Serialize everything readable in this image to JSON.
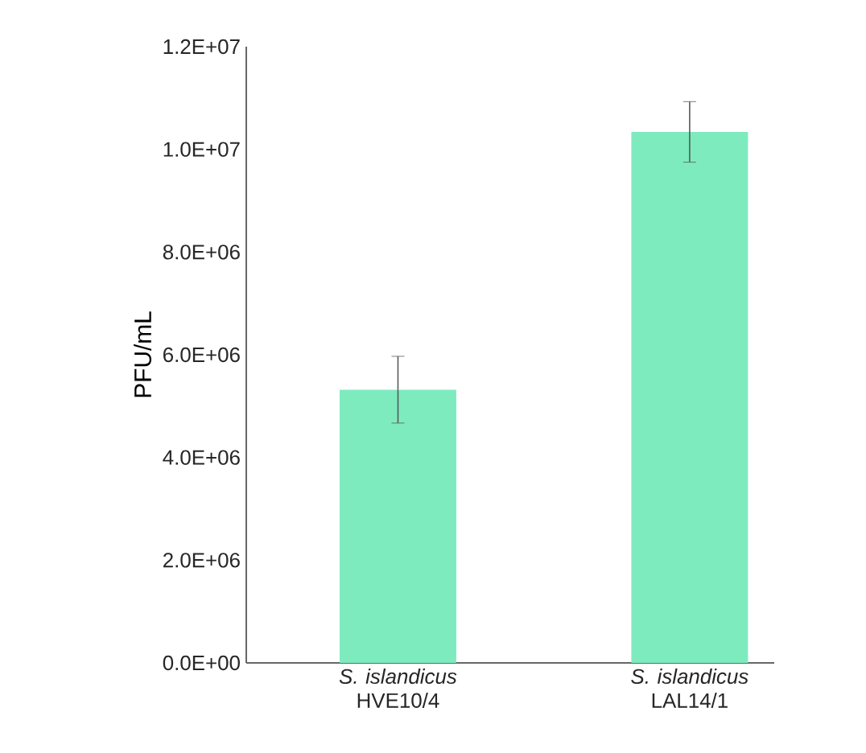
{
  "chart_data": {
    "type": "bar",
    "ylabel": "PFU/mL",
    "categories": [
      "*S. islandicus* HVE10/4",
      "*S. islandicus* LAL14/1"
    ],
    "values": [
      5320000,
      10340000
    ],
    "errors": [
      650000,
      590000
    ],
    "color": "#7debbe",
    "ylim": [
      0,
      12000000
    ],
    "yticks": [
      {
        "value": 0,
        "label": "0.0E+00"
      },
      {
        "value": 2000000,
        "label": "2.0E+06"
      },
      {
        "value": 4000000,
        "label": "4.0E+06"
      },
      {
        "value": 6000000,
        "label": "6.0E+06"
      },
      {
        "value": 8000000,
        "label": "8.0E+06"
      },
      {
        "value": 10000000,
        "label": "1.0E+07"
      },
      {
        "value": 12000000,
        "label": "1.2E+07"
      }
    ],
    "grid": false
  }
}
